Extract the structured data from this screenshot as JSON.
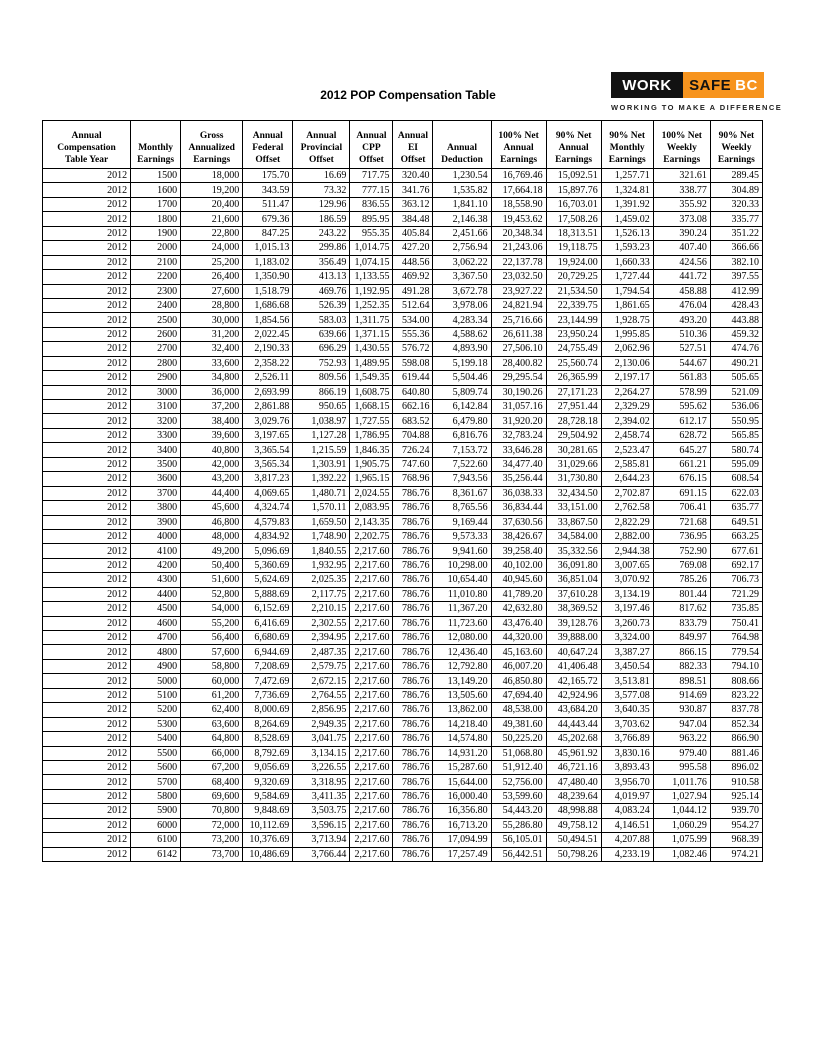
{
  "title": "2012 POP Compensation Table",
  "logo": {
    "work": "WORK",
    "safe": "SAFE",
    "bc": "BC",
    "tagline": "WORKING TO MAKE A DIFFERENCE",
    "colors": {
      "black": "#121212",
      "orange": "#F7941E",
      "white": "#FFFFFF"
    }
  },
  "table": {
    "headers": [
      "Annual\nCompensation\nTable Year",
      "Monthly\nEarnings",
      "Gross\nAnnualized\nEarnings",
      "Annual\nFederal\nOffset",
      "Annual\nProvincial\nOffset",
      "Annual\nCPP\nOffset",
      "Annual\nEI\nOffset",
      "Annual\nDeduction",
      "100% Net\nAnnual\nEarnings",
      "90% Net\nAnnual\nEarnings",
      "90% Net\nMonthly\nEarnings",
      "100% Net\nWeekly\nEarnings",
      "90% Net\nWeekly\nEarnings"
    ],
    "rows": [
      [
        "2012",
        "1500",
        "18,000",
        "175.70",
        "16.69",
        "717.75",
        "320.40",
        "1,230.54",
        "16,769.46",
        "15,092.51",
        "1,257.71",
        "321.61",
        "289.45"
      ],
      [
        "2012",
        "1600",
        "19,200",
        "343.59",
        "73.32",
        "777.15",
        "341.76",
        "1,535.82",
        "17,664.18",
        "15,897.76",
        "1,324.81",
        "338.77",
        "304.89"
      ],
      [
        "2012",
        "1700",
        "20,400",
        "511.47",
        "129.96",
        "836.55",
        "363.12",
        "1,841.10",
        "18,558.90",
        "16,703.01",
        "1,391.92",
        "355.92",
        "320.33"
      ],
      [
        "2012",
        "1800",
        "21,600",
        "679.36",
        "186.59",
        "895.95",
        "384.48",
        "2,146.38",
        "19,453.62",
        "17,508.26",
        "1,459.02",
        "373.08",
        "335.77"
      ],
      [
        "2012",
        "1900",
        "22,800",
        "847.25",
        "243.22",
        "955.35",
        "405.84",
        "2,451.66",
        "20,348.34",
        "18,313.51",
        "1,526.13",
        "390.24",
        "351.22"
      ],
      [
        "2012",
        "2000",
        "24,000",
        "1,015.13",
        "299.86",
        "1,014.75",
        "427.20",
        "2,756.94",
        "21,243.06",
        "19,118.75",
        "1,593.23",
        "407.40",
        "366.66"
      ],
      [
        "2012",
        "2100",
        "25,200",
        "1,183.02",
        "356.49",
        "1,074.15",
        "448.56",
        "3,062.22",
        "22,137.78",
        "19,924.00",
        "1,660.33",
        "424.56",
        "382.10"
      ],
      [
        "2012",
        "2200",
        "26,400",
        "1,350.90",
        "413.13",
        "1,133.55",
        "469.92",
        "3,367.50",
        "23,032.50",
        "20,729.25",
        "1,727.44",
        "441.72",
        "397.55"
      ],
      [
        "2012",
        "2300",
        "27,600",
        "1,518.79",
        "469.76",
        "1,192.95",
        "491.28",
        "3,672.78",
        "23,927.22",
        "21,534.50",
        "1,794.54",
        "458.88",
        "412.99"
      ],
      [
        "2012",
        "2400",
        "28,800",
        "1,686.68",
        "526.39",
        "1,252.35",
        "512.64",
        "3,978.06",
        "24,821.94",
        "22,339.75",
        "1,861.65",
        "476.04",
        "428.43"
      ],
      [
        "2012",
        "2500",
        "30,000",
        "1,854.56",
        "583.03",
        "1,311.75",
        "534.00",
        "4,283.34",
        "25,716.66",
        "23,144.99",
        "1,928.75",
        "493.20",
        "443.88"
      ],
      [
        "2012",
        "2600",
        "31,200",
        "2,022.45",
        "639.66",
        "1,371.15",
        "555.36",
        "4,588.62",
        "26,611.38",
        "23,950.24",
        "1,995.85",
        "510.36",
        "459.32"
      ],
      [
        "2012",
        "2700",
        "32,400",
        "2,190.33",
        "696.29",
        "1,430.55",
        "576.72",
        "4,893.90",
        "27,506.10",
        "24,755.49",
        "2,062.96",
        "527.51",
        "474.76"
      ],
      [
        "2012",
        "2800",
        "33,600",
        "2,358.22",
        "752.93",
        "1,489.95",
        "598.08",
        "5,199.18",
        "28,400.82",
        "25,560.74",
        "2,130.06",
        "544.67",
        "490.21"
      ],
      [
        "2012",
        "2900",
        "34,800",
        "2,526.11",
        "809.56",
        "1,549.35",
        "619.44",
        "5,504.46",
        "29,295.54",
        "26,365.99",
        "2,197.17",
        "561.83",
        "505.65"
      ],
      [
        "2012",
        "3000",
        "36,000",
        "2,693.99",
        "866.19",
        "1,608.75",
        "640.80",
        "5,809.74",
        "30,190.26",
        "27,171.23",
        "2,264.27",
        "578.99",
        "521.09"
      ],
      [
        "2012",
        "3100",
        "37,200",
        "2,861.88",
        "950.65",
        "1,668.15",
        "662.16",
        "6,142.84",
        "31,057.16",
        "27,951.44",
        "2,329.29",
        "595.62",
        "536.06"
      ],
      [
        "2012",
        "3200",
        "38,400",
        "3,029.76",
        "1,038.97",
        "1,727.55",
        "683.52",
        "6,479.80",
        "31,920.20",
        "28,728.18",
        "2,394.02",
        "612.17",
        "550.95"
      ],
      [
        "2012",
        "3300",
        "39,600",
        "3,197.65",
        "1,127.28",
        "1,786.95",
        "704.88",
        "6,816.76",
        "32,783.24",
        "29,504.92",
        "2,458.74",
        "628.72",
        "565.85"
      ],
      [
        "2012",
        "3400",
        "40,800",
        "3,365.54",
        "1,215.59",
        "1,846.35",
        "726.24",
        "7,153.72",
        "33,646.28",
        "30,281.65",
        "2,523.47",
        "645.27",
        "580.74"
      ],
      [
        "2012",
        "3500",
        "42,000",
        "3,565.34",
        "1,303.91",
        "1,905.75",
        "747.60",
        "7,522.60",
        "34,477.40",
        "31,029.66",
        "2,585.81",
        "661.21",
        "595.09"
      ],
      [
        "2012",
        "3600",
        "43,200",
        "3,817.23",
        "1,392.22",
        "1,965.15",
        "768.96",
        "7,943.56",
        "35,256.44",
        "31,730.80",
        "2,644.23",
        "676.15",
        "608.54"
      ],
      [
        "2012",
        "3700",
        "44,400",
        "4,069.65",
        "1,480.71",
        "2,024.55",
        "786.76",
        "8,361.67",
        "36,038.33",
        "32,434.50",
        "2,702.87",
        "691.15",
        "622.03"
      ],
      [
        "2012",
        "3800",
        "45,600",
        "4,324.74",
        "1,570.11",
        "2,083.95",
        "786.76",
        "8,765.56",
        "36,834.44",
        "33,151.00",
        "2,762.58",
        "706.41",
        "635.77"
      ],
      [
        "2012",
        "3900",
        "46,800",
        "4,579.83",
        "1,659.50",
        "2,143.35",
        "786.76",
        "9,169.44",
        "37,630.56",
        "33,867.50",
        "2,822.29",
        "721.68",
        "649.51"
      ],
      [
        "2012",
        "4000",
        "48,000",
        "4,834.92",
        "1,748.90",
        "2,202.75",
        "786.76",
        "9,573.33",
        "38,426.67",
        "34,584.00",
        "2,882.00",
        "736.95",
        "663.25"
      ],
      [
        "2012",
        "4100",
        "49,200",
        "5,096.69",
        "1,840.55",
        "2,217.60",
        "786.76",
        "9,941.60",
        "39,258.40",
        "35,332.56",
        "2,944.38",
        "752.90",
        "677.61"
      ],
      [
        "2012",
        "4200",
        "50,400",
        "5,360.69",
        "1,932.95",
        "2,217.60",
        "786.76",
        "10,298.00",
        "40,102.00",
        "36,091.80",
        "3,007.65",
        "769.08",
        "692.17"
      ],
      [
        "2012",
        "4300",
        "51,600",
        "5,624.69",
        "2,025.35",
        "2,217.60",
        "786.76",
        "10,654.40",
        "40,945.60",
        "36,851.04",
        "3,070.92",
        "785.26",
        "706.73"
      ],
      [
        "2012",
        "4400",
        "52,800",
        "5,888.69",
        "2,117.75",
        "2,217.60",
        "786.76",
        "11,010.80",
        "41,789.20",
        "37,610.28",
        "3,134.19",
        "801.44",
        "721.29"
      ],
      [
        "2012",
        "4500",
        "54,000",
        "6,152.69",
        "2,210.15",
        "2,217.60",
        "786.76",
        "11,367.20",
        "42,632.80",
        "38,369.52",
        "3,197.46",
        "817.62",
        "735.85"
      ],
      [
        "2012",
        "4600",
        "55,200",
        "6,416.69",
        "2,302.55",
        "2,217.60",
        "786.76",
        "11,723.60",
        "43,476.40",
        "39,128.76",
        "3,260.73",
        "833.79",
        "750.41"
      ],
      [
        "2012",
        "4700",
        "56,400",
        "6,680.69",
        "2,394.95",
        "2,217.60",
        "786.76",
        "12,080.00",
        "44,320.00",
        "39,888.00",
        "3,324.00",
        "849.97",
        "764.98"
      ],
      [
        "2012",
        "4800",
        "57,600",
        "6,944.69",
        "2,487.35",
        "2,217.60",
        "786.76",
        "12,436.40",
        "45,163.60",
        "40,647.24",
        "3,387.27",
        "866.15",
        "779.54"
      ],
      [
        "2012",
        "4900",
        "58,800",
        "7,208.69",
        "2,579.75",
        "2,217.60",
        "786.76",
        "12,792.80",
        "46,007.20",
        "41,406.48",
        "3,450.54",
        "882.33",
        "794.10"
      ],
      [
        "2012",
        "5000",
        "60,000",
        "7,472.69",
        "2,672.15",
        "2,217.60",
        "786.76",
        "13,149.20",
        "46,850.80",
        "42,165.72",
        "3,513.81",
        "898.51",
        "808.66"
      ],
      [
        "2012",
        "5100",
        "61,200",
        "7,736.69",
        "2,764.55",
        "2,217.60",
        "786.76",
        "13,505.60",
        "47,694.40",
        "42,924.96",
        "3,577.08",
        "914.69",
        "823.22"
      ],
      [
        "2012",
        "5200",
        "62,400",
        "8,000.69",
        "2,856.95",
        "2,217.60",
        "786.76",
        "13,862.00",
        "48,538.00",
        "43,684.20",
        "3,640.35",
        "930.87",
        "837.78"
      ],
      [
        "2012",
        "5300",
        "63,600",
        "8,264.69",
        "2,949.35",
        "2,217.60",
        "786.76",
        "14,218.40",
        "49,381.60",
        "44,443.44",
        "3,703.62",
        "947.04",
        "852.34"
      ],
      [
        "2012",
        "5400",
        "64,800",
        "8,528.69",
        "3,041.75",
        "2,217.60",
        "786.76",
        "14,574.80",
        "50,225.20",
        "45,202.68",
        "3,766.89",
        "963.22",
        "866.90"
      ],
      [
        "2012",
        "5500",
        "66,000",
        "8,792.69",
        "3,134.15",
        "2,217.60",
        "786.76",
        "14,931.20",
        "51,068.80",
        "45,961.92",
        "3,830.16",
        "979.40",
        "881.46"
      ],
      [
        "2012",
        "5600",
        "67,200",
        "9,056.69",
        "3,226.55",
        "2,217.60",
        "786.76",
        "15,287.60",
        "51,912.40",
        "46,721.16",
        "3,893.43",
        "995.58",
        "896.02"
      ],
      [
        "2012",
        "5700",
        "68,400",
        "9,320.69",
        "3,318.95",
        "2,217.60",
        "786.76",
        "15,644.00",
        "52,756.00",
        "47,480.40",
        "3,956.70",
        "1,011.76",
        "910.58"
      ],
      [
        "2012",
        "5800",
        "69,600",
        "9,584.69",
        "3,411.35",
        "2,217.60",
        "786.76",
        "16,000.40",
        "53,599.60",
        "48,239.64",
        "4,019.97",
        "1,027.94",
        "925.14"
      ],
      [
        "2012",
        "5900",
        "70,800",
        "9,848.69",
        "3,503.75",
        "2,217.60",
        "786.76",
        "16,356.80",
        "54,443.20",
        "48,998.88",
        "4,083.24",
        "1,044.12",
        "939.70"
      ],
      [
        "2012",
        "6000",
        "72,000",
        "10,112.69",
        "3,596.15",
        "2,217.60",
        "786.76",
        "16,713.20",
        "55,286.80",
        "49,758.12",
        "4,146.51",
        "1,060.29",
        "954.27"
      ],
      [
        "2012",
        "6100",
        "73,200",
        "10,376.69",
        "3,713.94",
        "2,217.60",
        "786.76",
        "17,094.99",
        "56,105.01",
        "50,494.51",
        "4,207.88",
        "1,075.99",
        "968.39"
      ],
      [
        "2012",
        "6142",
        "73,700",
        "10,486.69",
        "3,766.44",
        "2,217.60",
        "786.76",
        "17,257.49",
        "56,442.51",
        "50,798.26",
        "4,233.19",
        "1,082.46",
        "974.21"
      ]
    ]
  }
}
